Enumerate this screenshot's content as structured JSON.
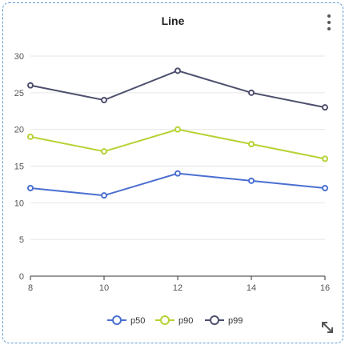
{
  "card": {
    "title": "Line"
  },
  "chart_data": {
    "type": "line",
    "title": "Line",
    "xlabel": "",
    "ylabel": "",
    "x": [
      8,
      10,
      12,
      14,
      16
    ],
    "xlim": [
      8,
      16
    ],
    "ylim": [
      0,
      30
    ],
    "yticks": [
      0,
      5,
      10,
      15,
      20,
      25,
      30
    ],
    "xticks": [
      8,
      10,
      12,
      14,
      16
    ],
    "grid": true,
    "legend": "bottom-center",
    "series": [
      {
        "name": "p50",
        "color": "#4a6fd1",
        "values": [
          12,
          11,
          14,
          13,
          12
        ]
      },
      {
        "name": "p90",
        "color": "#b5d334",
        "values": [
          19,
          17,
          20,
          18,
          16
        ]
      },
      {
        "name": "p99",
        "color": "#4d4f6e",
        "values": [
          26,
          24,
          28,
          25,
          23
        ]
      }
    ]
  }
}
